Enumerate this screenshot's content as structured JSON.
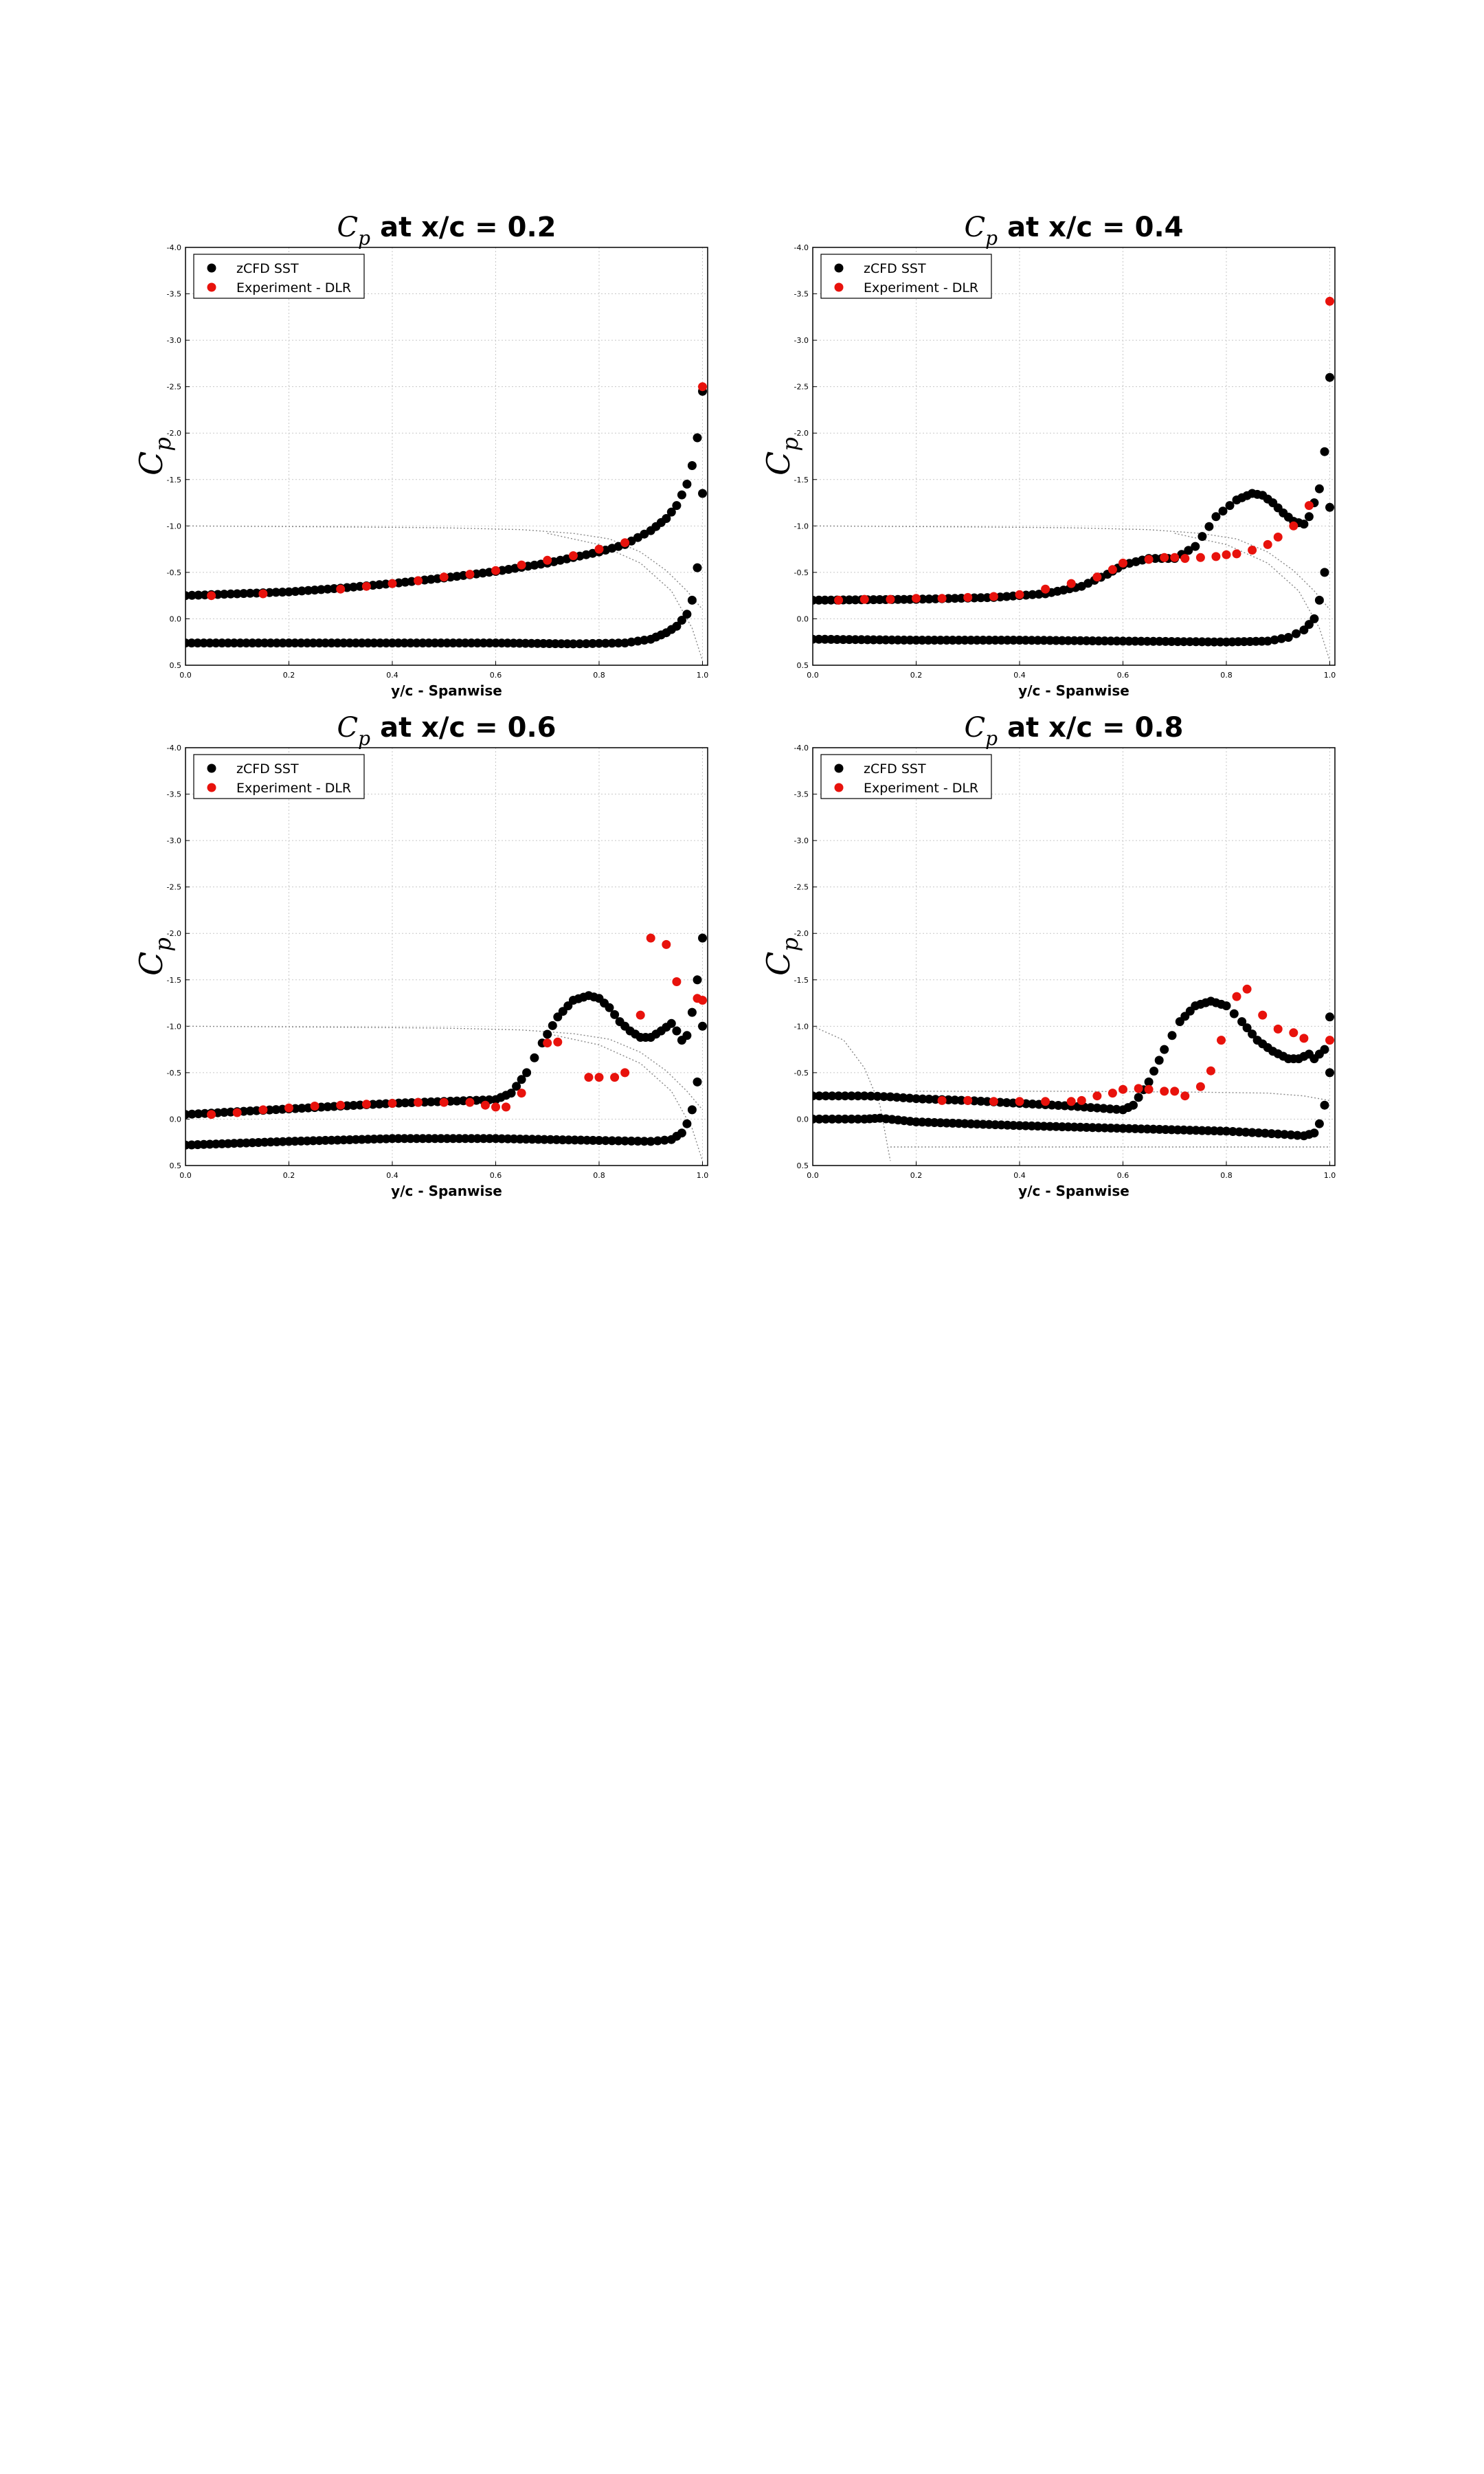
{
  "chart_data": [
    {
      "type": "scatter",
      "title_math": "C",
      "title_math_sub": "p",
      "title_text": "at x/c = 0.2",
      "xlabel": "y/c - Spanwise",
      "ylabel_math": "C",
      "ylabel_math_sub": "p",
      "xlim": [
        0.0,
        1.01
      ],
      "ylim": [
        0.5,
        -4.0
      ],
      "y_inverted": true,
      "xticks": [
        "0.0",
        "0.2",
        "0.4",
        "0.6",
        "0.8",
        "1.0"
      ],
      "yticks": [
        "-4.0",
        "-3.5",
        "-3.0",
        "-2.5",
        "-2.0",
        "-1.5",
        "-1.0",
        "-0.5",
        "0.0",
        "0.5"
      ],
      "grid": true,
      "legend_position": "top-left",
      "legend": [
        {
          "label": "zCFD SST",
          "color": "#000000"
        },
        {
          "label": "Experiment - DLR",
          "color": "#e8120c"
        }
      ],
      "series": [
        {
          "name": "zCFD SST",
          "color": "#000000",
          "kind": "upper",
          "x": [
            0.0,
            0.1,
            0.2,
            0.3,
            0.4,
            0.5,
            0.6,
            0.7,
            0.8,
            0.85,
            0.9,
            0.93,
            0.95,
            0.97,
            0.98,
            0.99,
            1.0
          ],
          "y": [
            -0.25,
            -0.27,
            -0.29,
            -0.33,
            -0.38,
            -0.44,
            -0.51,
            -0.6,
            -0.72,
            -0.8,
            -0.95,
            -1.08,
            -1.22,
            -1.45,
            -1.65,
            -1.95,
            -2.45
          ]
        },
        {
          "name": "zCFD SST",
          "color": "#000000",
          "kind": "lower",
          "x": [
            0.0,
            0.2,
            0.4,
            0.6,
            0.75,
            0.85,
            0.9,
            0.93,
            0.95,
            0.97,
            0.98,
            0.99,
            1.0
          ],
          "y": [
            0.26,
            0.26,
            0.26,
            0.26,
            0.27,
            0.26,
            0.22,
            0.15,
            0.08,
            -0.05,
            -0.2,
            -0.55,
            -1.35
          ]
        },
        {
          "name": "Experiment - DLR",
          "color": "#e8120c",
          "x": [
            0.05,
            0.15,
            0.3,
            0.35,
            0.4,
            0.45,
            0.5,
            0.55,
            0.6,
            0.65,
            0.7,
            0.75,
            0.8,
            0.85,
            1.0
          ],
          "y": [
            -0.25,
            -0.27,
            -0.32,
            -0.35,
            -0.38,
            -0.41,
            -0.45,
            -0.48,
            -0.52,
            -0.58,
            -0.63,
            -0.68,
            -0.75,
            -0.82,
            -2.5
          ]
        }
      ],
      "reference_curves": [
        {
          "x": [
            0.0,
            0.3,
            0.5,
            0.65,
            0.75,
            0.82,
            0.88,
            0.93,
            0.97,
            1.0
          ],
          "y": [
            -1.0,
            -0.99,
            -0.98,
            -0.96,
            -0.92,
            -0.86,
            -0.72,
            -0.52,
            -0.3,
            -0.1
          ]
        },
        {
          "x": [
            0.7,
            0.8,
            0.88,
            0.94,
            0.98,
            1.0
          ],
          "y": [
            -0.92,
            -0.8,
            -0.6,
            -0.3,
            0.1,
            0.45
          ]
        }
      ]
    },
    {
      "type": "scatter",
      "title_math": "C",
      "title_math_sub": "p",
      "title_text": "at x/c = 0.4",
      "xlabel": "y/c - Spanwise",
      "ylabel_math": "C",
      "ylabel_math_sub": "p",
      "xlim": [
        0.0,
        1.01
      ],
      "ylim": [
        0.5,
        -4.0
      ],
      "y_inverted": true,
      "xticks": [
        "0.0",
        "0.2",
        "0.4",
        "0.6",
        "0.8",
        "1.0"
      ],
      "yticks": [
        "-4.0",
        "-3.5",
        "-3.0",
        "-2.5",
        "-2.0",
        "-1.5",
        "-1.0",
        "-0.5",
        "0.0",
        "0.5"
      ],
      "grid": true,
      "legend_position": "top-left",
      "legend": [
        {
          "label": "zCFD SST",
          "color": "#000000"
        },
        {
          "label": "Experiment - DLR",
          "color": "#e8120c"
        }
      ],
      "series": [
        {
          "name": "zCFD SST",
          "color": "#000000",
          "kind": "upper",
          "x": [
            0.0,
            0.2,
            0.35,
            0.45,
            0.52,
            0.57,
            0.6,
            0.65,
            0.7,
            0.74,
            0.78,
            0.82,
            0.85,
            0.87,
            0.89,
            0.91,
            0.93,
            0.95,
            0.96,
            0.97,
            0.98,
            0.99,
            1.0
          ],
          "y": [
            -0.2,
            -0.21,
            -0.23,
            -0.27,
            -0.35,
            -0.48,
            -0.58,
            -0.65,
            -0.65,
            -0.78,
            -1.1,
            -1.28,
            -1.35,
            -1.33,
            -1.25,
            -1.14,
            -1.05,
            -1.02,
            -1.1,
            -1.25,
            -1.4,
            -1.8,
            -2.6
          ]
        },
        {
          "name": "zCFD SST",
          "color": "#000000",
          "kind": "lower",
          "x": [
            0.0,
            0.2,
            0.4,
            0.6,
            0.8,
            0.88,
            0.92,
            0.95,
            0.97,
            0.98,
            0.99,
            1.0
          ],
          "y": [
            0.22,
            0.23,
            0.23,
            0.24,
            0.25,
            0.24,
            0.2,
            0.12,
            0.0,
            -0.2,
            -0.5,
            -1.2
          ]
        },
        {
          "name": "Experiment - DLR",
          "color": "#e8120c",
          "x": [
            0.05,
            0.1,
            0.15,
            0.2,
            0.25,
            0.3,
            0.35,
            0.4,
            0.45,
            0.5,
            0.55,
            0.58,
            0.6,
            0.65,
            0.68,
            0.7,
            0.72,
            0.75,
            0.78,
            0.8,
            0.82,
            0.85,
            0.88,
            0.9,
            0.93,
            0.96,
            1.0
          ],
          "y": [
            -0.2,
            -0.21,
            -0.21,
            -0.22,
            -0.22,
            -0.23,
            -0.24,
            -0.26,
            -0.32,
            -0.38,
            -0.45,
            -0.53,
            -0.6,
            -0.64,
            -0.66,
            -0.66,
            -0.65,
            -0.66,
            -0.67,
            -0.69,
            -0.7,
            -0.74,
            -0.8,
            -0.88,
            -1.0,
            -1.22,
            -3.42
          ]
        }
      ],
      "reference_curves": [
        {
          "x": [
            0.0,
            0.3,
            0.5,
            0.65,
            0.75,
            0.82,
            0.88,
            0.93,
            0.97,
            1.0
          ],
          "y": [
            -1.0,
            -0.99,
            -0.98,
            -0.96,
            -0.92,
            -0.86,
            -0.72,
            -0.52,
            -0.3,
            -0.1
          ]
        },
        {
          "x": [
            0.7,
            0.8,
            0.88,
            0.94,
            0.98,
            1.0
          ],
          "y": [
            -0.92,
            -0.8,
            -0.6,
            -0.3,
            0.1,
            0.45
          ]
        }
      ]
    },
    {
      "type": "scatter",
      "title_math": "C",
      "title_math_sub": "p",
      "title_text": "at x/c = 0.6",
      "xlabel": "y/c - Spanwise",
      "ylabel_math": "C",
      "ylabel_math_sub": "p",
      "xlim": [
        0.0,
        1.01
      ],
      "ylim": [
        0.5,
        -4.0
      ],
      "y_inverted": true,
      "xticks": [
        "0.0",
        "0.2",
        "0.4",
        "0.6",
        "0.8",
        "1.0"
      ],
      "yticks": [
        "-4.0",
        "-3.5",
        "-3.0",
        "-2.5",
        "-2.0",
        "-1.5",
        "-1.0",
        "-0.5",
        "0.0",
        "0.5"
      ],
      "grid": true,
      "legend_position": "top-left",
      "legend": [
        {
          "label": "zCFD SST",
          "color": "#000000"
        },
        {
          "label": "Experiment - DLR",
          "color": "#e8120c"
        }
      ],
      "series": [
        {
          "name": "zCFD SST",
          "color": "#000000",
          "kind": "upper",
          "x": [
            0.0,
            0.1,
            0.2,
            0.3,
            0.4,
            0.5,
            0.55,
            0.6,
            0.63,
            0.66,
            0.69,
            0.72,
            0.75,
            0.78,
            0.8,
            0.82,
            0.84,
            0.86,
            0.88,
            0.9,
            0.92,
            0.94,
            0.95,
            0.96,
            0.97,
            0.98,
            0.99,
            1.0
          ],
          "y": [
            -0.05,
            -0.08,
            -0.11,
            -0.14,
            -0.17,
            -0.19,
            -0.2,
            -0.21,
            -0.28,
            -0.5,
            -0.82,
            -1.1,
            -1.28,
            -1.33,
            -1.3,
            -1.2,
            -1.05,
            -0.95,
            -0.88,
            -0.88,
            -0.95,
            -1.03,
            -0.95,
            -0.85,
            -0.9,
            -1.15,
            -1.5,
            -1.95
          ]
        },
        {
          "name": "zCFD SST",
          "color": "#000000",
          "kind": "lower",
          "x": [
            0.0,
            0.2,
            0.4,
            0.6,
            0.8,
            0.9,
            0.94,
            0.96,
            0.97,
            0.98,
            0.99,
            1.0
          ],
          "y": [
            0.28,
            0.24,
            0.21,
            0.21,
            0.23,
            0.24,
            0.22,
            0.15,
            0.05,
            -0.1,
            -0.4,
            -1.0
          ]
        },
        {
          "name": "Experiment - DLR",
          "color": "#e8120c",
          "x": [
            0.05,
            0.1,
            0.15,
            0.2,
            0.25,
            0.3,
            0.35,
            0.4,
            0.45,
            0.5,
            0.55,
            0.58,
            0.6,
            0.62,
            0.65,
            0.7,
            0.72,
            0.78,
            0.8,
            0.83,
            0.85,
            0.88,
            0.9,
            0.93,
            0.95,
            0.99,
            1.0
          ],
          "y": [
            -0.05,
            -0.07,
            -0.1,
            -0.12,
            -0.14,
            -0.15,
            -0.16,
            -0.17,
            -0.18,
            -0.18,
            -0.18,
            -0.15,
            -0.13,
            -0.13,
            -0.28,
            -0.82,
            -0.83,
            -0.45,
            -0.45,
            -0.45,
            -0.5,
            -1.12,
            -1.95,
            -1.88,
            -1.48,
            -1.3,
            -1.28
          ]
        }
      ],
      "reference_curves": [
        {
          "x": [
            0.0,
            0.3,
            0.5,
            0.65,
            0.75,
            0.82,
            0.88,
            0.93,
            0.97,
            1.0
          ],
          "y": [
            -1.0,
            -0.99,
            -0.98,
            -0.96,
            -0.92,
            -0.86,
            -0.72,
            -0.52,
            -0.3,
            -0.1
          ]
        },
        {
          "x": [
            0.7,
            0.8,
            0.88,
            0.94,
            0.98,
            1.0
          ],
          "y": [
            -0.92,
            -0.8,
            -0.6,
            -0.3,
            0.1,
            0.45
          ]
        }
      ]
    },
    {
      "type": "scatter",
      "title_math": "C",
      "title_math_sub": "p",
      "title_text": "at x/c = 0.8",
      "xlabel": "y/c - Spanwise",
      "ylabel_math": "C",
      "ylabel_math_sub": "p",
      "xlim": [
        0.0,
        1.01
      ],
      "ylim": [
        0.5,
        -4.0
      ],
      "y_inverted": true,
      "xticks": [
        "0.0",
        "0.2",
        "0.4",
        "0.6",
        "0.8",
        "1.0"
      ],
      "yticks": [
        "-4.0",
        "-3.5",
        "-3.0",
        "-2.5",
        "-2.0",
        "-1.5",
        "-1.0",
        "-0.5",
        "0.0",
        "0.5"
      ],
      "grid": true,
      "legend_position": "top-left",
      "legend": [
        {
          "label": "zCFD SST",
          "color": "#000000"
        },
        {
          "label": "Experiment - DLR",
          "color": "#e8120c"
        }
      ],
      "series": [
        {
          "name": "zCFD SST",
          "color": "#000000",
          "kind": "upper",
          "x": [
            0.0,
            0.1,
            0.15,
            0.2,
            0.3,
            0.4,
            0.5,
            0.55,
            0.6,
            0.62,
            0.65,
            0.68,
            0.71,
            0.74,
            0.77,
            0.8,
            0.83,
            0.86,
            0.89,
            0.92,
            0.94,
            0.96,
            0.97,
            0.98,
            0.99,
            1.0
          ],
          "y": [
            -0.25,
            -0.25,
            -0.24,
            -0.22,
            -0.2,
            -0.17,
            -0.14,
            -0.12,
            -0.1,
            -0.15,
            -0.4,
            -0.75,
            -1.05,
            -1.22,
            -1.27,
            -1.22,
            -1.05,
            -0.85,
            -0.73,
            -0.65,
            -0.65,
            -0.7,
            -0.65,
            -0.7,
            -0.75,
            -1.1
          ]
        },
        {
          "name": "zCFD SST",
          "color": "#000000",
          "kind": "lower",
          "x": [
            0.0,
            0.1,
            0.13,
            0.2,
            0.4,
            0.6,
            0.8,
            0.9,
            0.95,
            0.97,
            0.98,
            0.99,
            1.0
          ],
          "y": [
            0.0,
            0.0,
            -0.01,
            0.03,
            0.07,
            0.1,
            0.13,
            0.16,
            0.18,
            0.15,
            0.05,
            -0.15,
            -0.5
          ]
        },
        {
          "name": "Experiment - DLR",
          "color": "#e8120c",
          "x": [
            0.25,
            0.3,
            0.35,
            0.4,
            0.45,
            0.5,
            0.52,
            0.55,
            0.58,
            0.6,
            0.63,
            0.65,
            0.68,
            0.7,
            0.72,
            0.75,
            0.77,
            0.79,
            0.82,
            0.84,
            0.87,
            0.9,
            0.93,
            0.95,
            1.0
          ],
          "y": [
            -0.2,
            -0.2,
            -0.19,
            -0.19,
            -0.19,
            -0.19,
            -0.2,
            -0.25,
            -0.28,
            -0.32,
            -0.33,
            -0.32,
            -0.3,
            -0.3,
            -0.25,
            -0.35,
            -0.52,
            -0.85,
            -1.32,
            -1.4,
            -1.12,
            -0.97,
            -0.93,
            -0.87,
            -0.85
          ]
        }
      ],
      "reference_curves": [
        {
          "x": [
            0.0,
            0.06,
            0.1,
            0.13,
            0.15
          ],
          "y": [
            -1.0,
            -0.85,
            -0.55,
            -0.15,
            0.45
          ]
        },
        {
          "x": [
            0.15,
            0.5,
            0.75,
            0.9,
            1.0
          ],
          "y": [
            0.3,
            0.3,
            0.3,
            0.3,
            0.3
          ]
        },
        {
          "x": [
            0.2,
            0.5,
            0.75,
            0.88,
            0.95,
            1.0
          ],
          "y": [
            -0.3,
            -0.3,
            -0.29,
            -0.28,
            -0.25,
            -0.2
          ]
        }
      ]
    }
  ]
}
